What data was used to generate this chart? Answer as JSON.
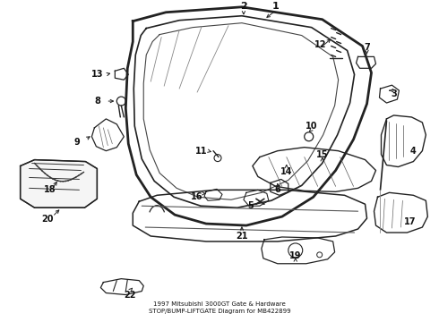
{
  "title": "1997 Mitsubishi 3000GT Gate & Hardware\nSTOP/BUMP-LIFTGATE Diagram for MB422899",
  "background_color": "#ffffff",
  "line_color": "#222222",
  "text_color": "#111111",
  "fig_width": 4.9,
  "fig_height": 3.6,
  "dpi": 100
}
